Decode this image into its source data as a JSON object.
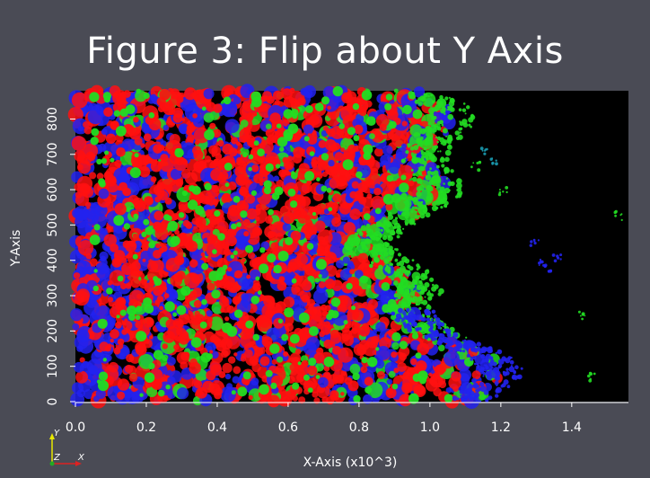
{
  "chart_data": {
    "type": "heatmap",
    "title": "Figure 3: Flip about Y Axis",
    "xlabel": "X-Axis (x10^3)",
    "ylabel": "Y-Axis",
    "xlim": [
      0.0,
      1.56
    ],
    "ylim": [
      0,
      880
    ],
    "x_ticks": [
      "0.0",
      "0.2",
      "0.4",
      "0.6",
      "0.8",
      "1.0",
      "1.2",
      "1.4"
    ],
    "x_tick_values": [
      0.0,
      0.2,
      0.4,
      0.6,
      0.8,
      1.0,
      1.2,
      1.4
    ],
    "y_ticks": [
      "0",
      "100",
      "200",
      "300",
      "400",
      "500",
      "600",
      "700",
      "800"
    ],
    "y_tick_values": [
      0,
      100,
      200,
      300,
      400,
      500,
      600,
      700,
      800
    ],
    "grid": false,
    "background_color": "#000000",
    "colors": [
      "#ff1010",
      "#2222ee",
      "#22dd22"
    ]
  },
  "orientation_axes": {
    "y": "Y",
    "z": "Z",
    "x": "X"
  },
  "colors": {
    "page_background": "#4a4b55",
    "plot_background": "#000000",
    "red": "#ff1010",
    "blue": "#2222ee",
    "green": "#22dd22"
  }
}
